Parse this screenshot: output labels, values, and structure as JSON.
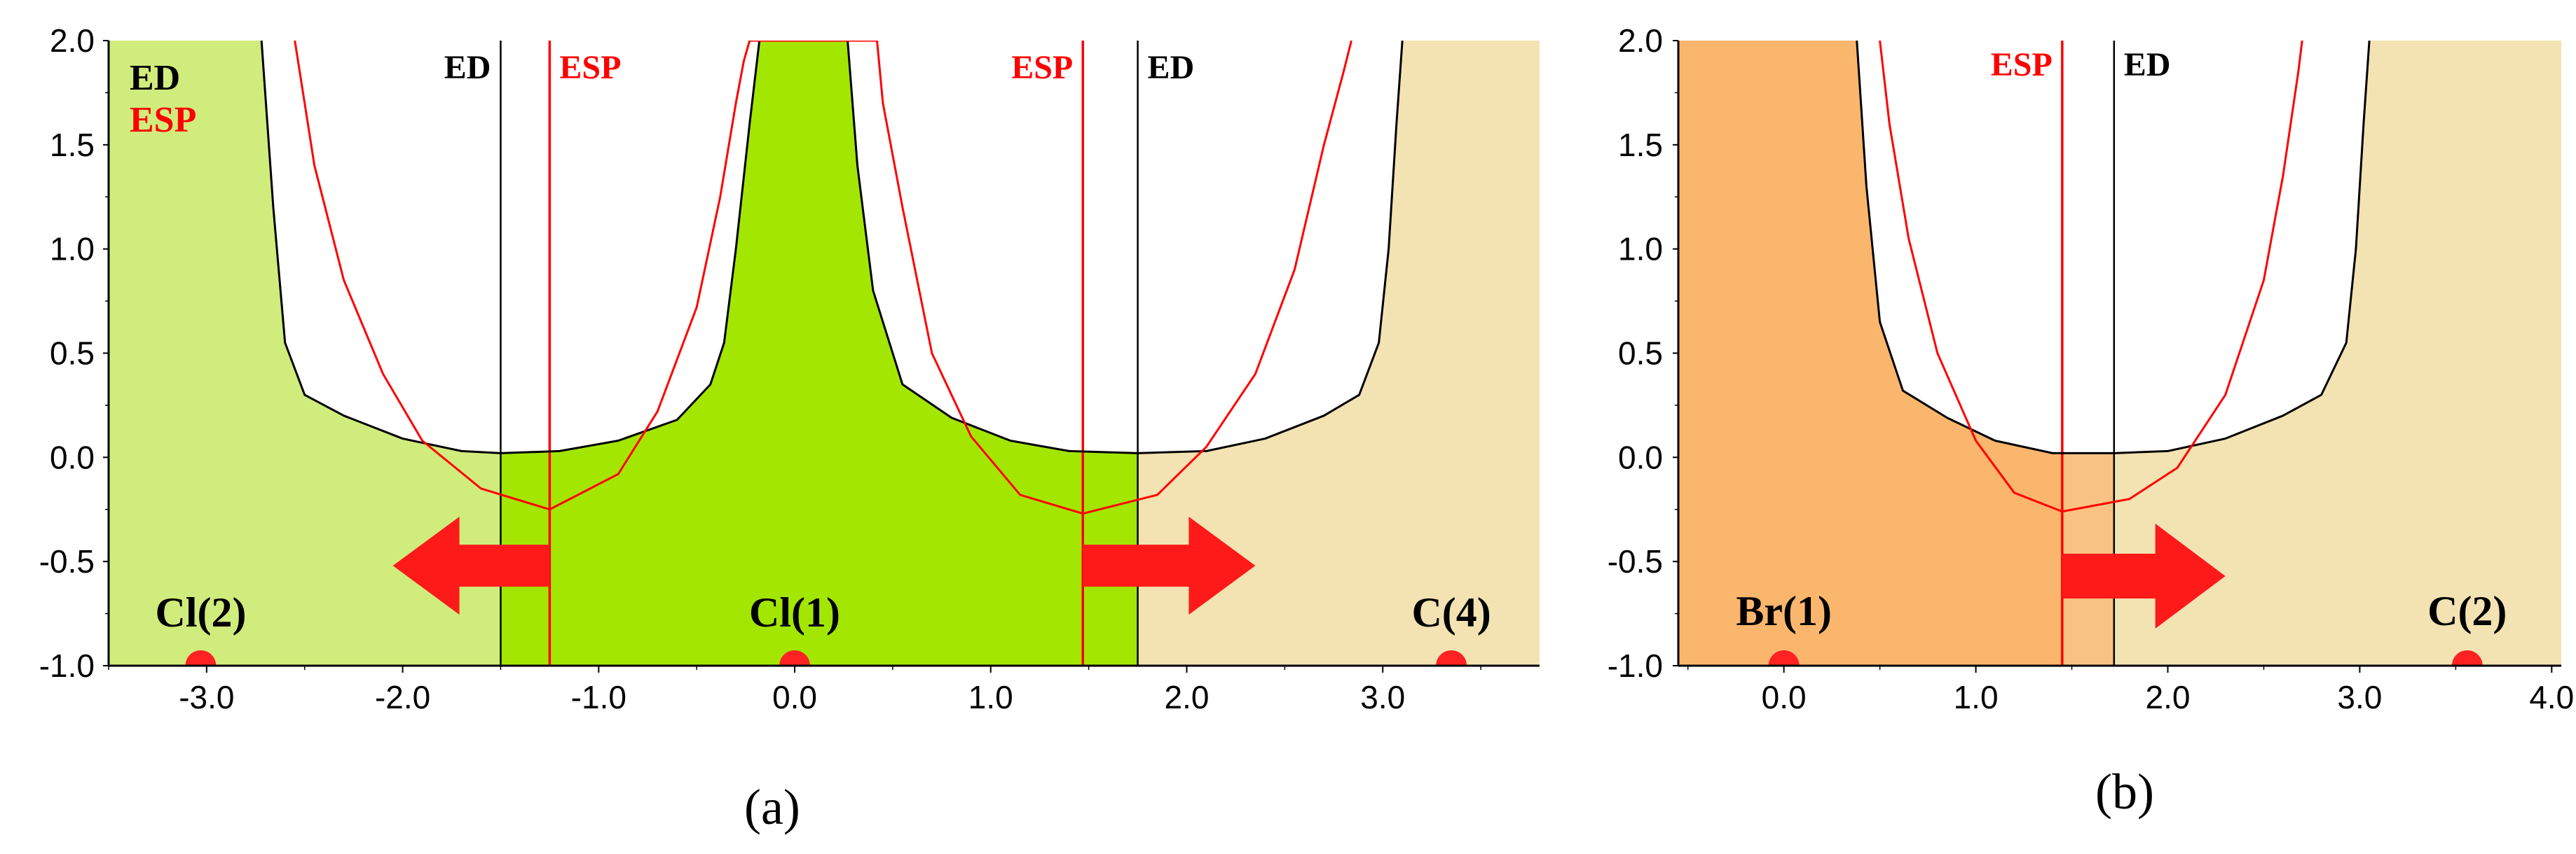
{
  "chart_data": [
    {
      "type": "line",
      "panel_label": "(a)",
      "xlim": [
        -3.5,
        3.8
      ],
      "ylim": [
        -1.0,
        2.0
      ],
      "xticks": [
        -3.0,
        -2.0,
        -1.0,
        0.0,
        1.0,
        2.0,
        3.0
      ],
      "xtick_labels": [
        "-3.0",
        "-2.0",
        "-1.0",
        "0.0",
        "1.0",
        "2.0",
        "3.0"
      ],
      "yticks": [
        2.0,
        1.5,
        1.0,
        0.5,
        0.0,
        -0.5,
        -1.0
      ],
      "ytick_labels": [
        "2.0",
        "1.5",
        "1.0",
        "0.5",
        "0.0",
        "-0.5",
        "-1.0"
      ],
      "legend": [
        {
          "name": "ED",
          "color": "#000000"
        },
        {
          "name": "ESP",
          "color": "#ff0000"
        }
      ],
      "regions": [
        {
          "x": [
            -3.5,
            -1.5
          ],
          "color": "#d0ec7c"
        },
        {
          "x": [
            -1.5,
            1.75
          ],
          "color": "#a3e602"
        },
        {
          "x": [
            1.75,
            3.8
          ],
          "color": "#f3e3b2"
        }
      ],
      "vlines": [
        {
          "x": -1.5,
          "label": "ED",
          "color": "#000000"
        },
        {
          "x": -1.25,
          "label": "ESP",
          "color": "#ff0000"
        },
        {
          "x": 1.47,
          "label": "ESP",
          "color": "#ff0000"
        },
        {
          "x": 1.75,
          "label": "ED",
          "color": "#000000"
        }
      ],
      "atoms": [
        {
          "name": "Cl(2)",
          "x": -3.03
        },
        {
          "name": "Cl(1)",
          "x": 0.0
        },
        {
          "name": "C(4)",
          "x": 3.35
        }
      ],
      "arrows": [
        {
          "from": -1.25,
          "to": -2.05,
          "y": -0.52
        },
        {
          "from": 1.47,
          "to": 2.35,
          "y": -0.52
        }
      ],
      "series": [
        {
          "name": "ED",
          "color": "#000000",
          "x": [
            -2.72,
            -2.66,
            -2.6,
            -2.5,
            -2.3,
            -2.0,
            -1.7,
            -1.5,
            -1.2,
            -0.9,
            -0.6,
            -0.43,
            -0.36,
            -0.3,
            -0.23,
            -0.18,
            0.27,
            0.32,
            0.4,
            0.55,
            0.8,
            1.1,
            1.4,
            1.75,
            2.1,
            2.4,
            2.7,
            2.88,
            2.98,
            3.03,
            3.07,
            3.1
          ],
          "y": [
            2.0,
            1.2,
            0.55,
            0.3,
            0.2,
            0.09,
            0.03,
            0.02,
            0.03,
            0.08,
            0.18,
            0.35,
            0.55,
            1.0,
            1.6,
            2.0,
            2.0,
            1.4,
            0.8,
            0.35,
            0.19,
            0.08,
            0.03,
            0.02,
            0.03,
            0.09,
            0.2,
            0.3,
            0.55,
            1.0,
            1.6,
            2.0
          ]
        },
        {
          "name": "ESP",
          "color": "#ff0000",
          "x": [
            -2.55,
            -2.45,
            -2.3,
            -2.1,
            -1.9,
            -1.6,
            -1.25,
            -0.9,
            -0.7,
            -0.5,
            -0.38,
            -0.3,
            -0.26,
            -0.23,
            0.42,
            0.45,
            0.55,
            0.7,
            0.9,
            1.15,
            1.47,
            1.85,
            2.1,
            2.35,
            2.55,
            2.7,
            2.8,
            2.84
          ],
          "y": [
            2.0,
            1.4,
            0.85,
            0.4,
            0.08,
            -0.15,
            -0.25,
            -0.08,
            0.22,
            0.72,
            1.25,
            1.7,
            1.9,
            2.0,
            2.0,
            1.7,
            1.2,
            0.5,
            0.1,
            -0.18,
            -0.27,
            -0.18,
            0.05,
            0.4,
            0.9,
            1.5,
            1.85,
            2.0
          ]
        }
      ]
    },
    {
      "type": "line",
      "panel_label": "(b)",
      "xlim": [
        -0.55,
        4.05
      ],
      "ylim": [
        -1.0,
        2.0
      ],
      "xticks": [
        0.0,
        1.0,
        2.0,
        3.0,
        4.0
      ],
      "xtick_labels": [
        "0.0",
        "1.0",
        "2.0",
        "3.0",
        "4.0"
      ],
      "yticks": [
        2.0,
        1.5,
        1.0,
        0.5,
        0.0,
        -0.5,
        -1.0
      ],
      "ytick_labels": [
        "2.0",
        "1.5",
        "1.0",
        "0.5",
        "0.0",
        "-0.5",
        "-1.0"
      ],
      "regions": [
        {
          "x": [
            -0.55,
            1.45
          ],
          "color": "#fbb66d"
        },
        {
          "x": [
            1.45,
            1.72
          ],
          "color": "#f8c382"
        },
        {
          "x": [
            1.72,
            4.05
          ],
          "color": "#f3e3b2"
        }
      ],
      "vlines": [
        {
          "x": 1.45,
          "label": "ESP",
          "color": "#ff0000"
        },
        {
          "x": 1.72,
          "label": "ED",
          "color": "#000000"
        }
      ],
      "atoms": [
        {
          "name": "Br(1)",
          "x": 0.0
        },
        {
          "name": "C(2)",
          "x": 3.56
        }
      ],
      "arrows": [
        {
          "from": 1.45,
          "to": 2.3,
          "y": -0.57
        }
      ],
      "series": [
        {
          "name": "ED",
          "color": "#000000",
          "x": [
            0.38,
            0.43,
            0.5,
            0.62,
            0.85,
            1.1,
            1.4,
            1.72,
            2.0,
            2.3,
            2.6,
            2.8,
            2.93,
            2.98,
            3.02,
            3.05
          ],
          "y": [
            2.0,
            1.3,
            0.65,
            0.32,
            0.19,
            0.08,
            0.02,
            0.02,
            0.03,
            0.09,
            0.2,
            0.3,
            0.55,
            1.0,
            1.6,
            2.0
          ]
        },
        {
          "name": "ESP",
          "color": "#ff0000",
          "x": [
            0.5,
            0.55,
            0.65,
            0.8,
            1.0,
            1.2,
            1.45,
            1.8,
            2.05,
            2.3,
            2.5,
            2.6,
            2.68,
            2.7
          ],
          "y": [
            2.0,
            1.6,
            1.05,
            0.5,
            0.08,
            -0.17,
            -0.26,
            -0.2,
            -0.05,
            0.3,
            0.85,
            1.35,
            1.85,
            2.0
          ]
        }
      ]
    }
  ]
}
